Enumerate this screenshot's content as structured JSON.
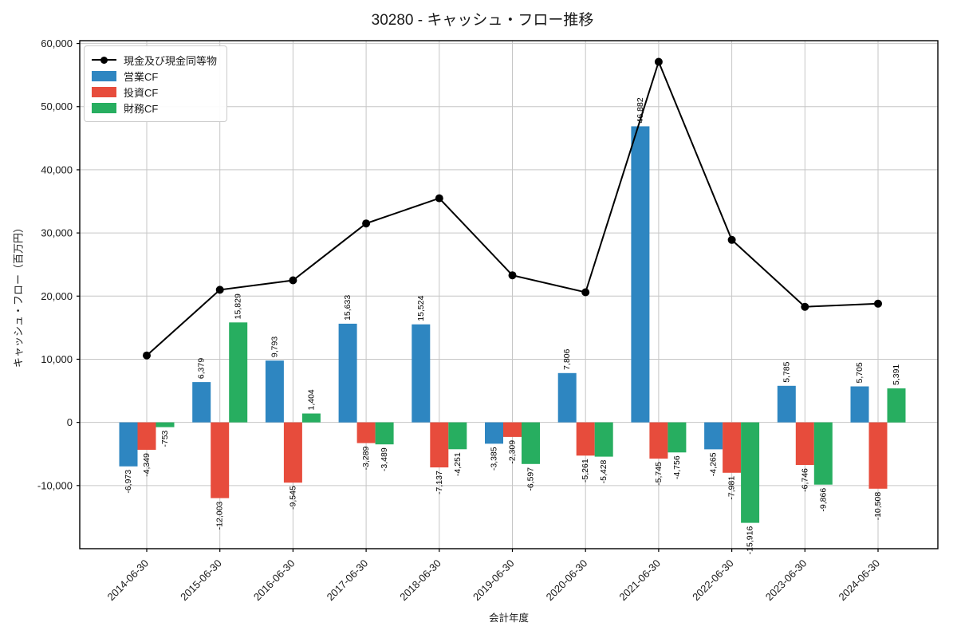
{
  "title": "30280 - キャッシュ・フロー推移",
  "chart_data": {
    "type": "bar+line",
    "title": "30280 - キャッシュ・フロー推移",
    "xlabel": "会計年度",
    "ylabel": "キャッシュ・フロー（百万円）",
    "categories": [
      "2014-06-30",
      "2015-06-30",
      "2016-06-30",
      "2017-06-30",
      "2018-06-30",
      "2019-06-30",
      "2020-06-30",
      "2021-06-30",
      "2022-06-30",
      "2023-06-30",
      "2024-06-30"
    ],
    "series": [
      {
        "name": "現金及び現金同等物",
        "type": "line",
        "color": "#000000",
        "values": [
          10600,
          21000,
          22500,
          31500,
          35500,
          23300,
          20600,
          57100,
          28900,
          18300,
          18800
        ]
      },
      {
        "name": "営業CF",
        "type": "bar",
        "color": "#2e86c1",
        "values": [
          -6973,
          6379,
          9793,
          15633,
          15524,
          -3385,
          7806,
          46882,
          -4265,
          5785,
          5705
        ]
      },
      {
        "name": "投資CF",
        "type": "bar",
        "color": "#e74c3c",
        "values": [
          -4349,
          -12003,
          -9545,
          -3289,
          -7137,
          -2309,
          -5261,
          -5745,
          -7981,
          -6746,
          -10508
        ]
      },
      {
        "name": "財務CF",
        "type": "bar",
        "color": "#27ae60",
        "values": [
          -753,
          15829,
          1404,
          -3489,
          -4251,
          -6597,
          -5428,
          -4756,
          -15916,
          -9866,
          5391
        ]
      }
    ],
    "bar_value_labels": true,
    "ylim": [
      -20000,
      60450
    ],
    "yticks": [
      -10000,
      0,
      10000,
      20000,
      30000,
      40000,
      50000,
      60000
    ],
    "grid": true,
    "legend_position": "upper left",
    "grid_color": "#c6c6c6",
    "axis_color": "#000000",
    "label_color": "#1a1a1a"
  }
}
